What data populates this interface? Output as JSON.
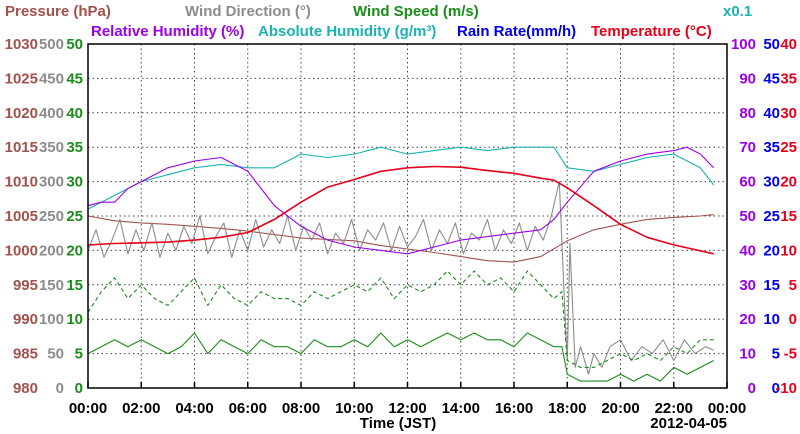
{
  "chart_data": {
    "type": "line",
    "date": "2012-04-05",
    "xlabel": "Time (JST)",
    "x_ticks": [
      "00:00",
      "02:00",
      "04:00",
      "06:00",
      "08:00",
      "10:00",
      "12:00",
      "14:00",
      "16:00",
      "18:00",
      "20:00",
      "22:00",
      "00:00"
    ],
    "x_range_hours": [
      0,
      24
    ],
    "grid": true,
    "legend": [
      {
        "key": "pressure",
        "text": "Pressure (hPa)",
        "color": "#a0524d"
      },
      {
        "key": "wind_dir",
        "text": "Wind Direction (°)",
        "color": "#8c8c8c"
      },
      {
        "key": "wind_speed",
        "text": "Wind Speed (m/s)",
        "color": "#1a8c1a"
      },
      {
        "key": "rel_hum",
        "text": "Relative Humidity (%)",
        "color": "#9b00e6"
      },
      {
        "key": "abs_hum",
        "text": "Absolute Humidity (g/m³)",
        "color": "#1ab3b3"
      },
      {
        "key": "abs_hum_scale",
        "text": "x0.1",
        "color": "#1ab3b3"
      },
      {
        "key": "rain",
        "text": "Rain Rate(mm/h)",
        "color": "#0000e6"
      },
      {
        "key": "temp",
        "text": "Temperature (°C)",
        "color": "#e6001a"
      }
    ],
    "axes": {
      "pressure": {
        "range": [
          980,
          1030
        ],
        "ticks": [
          "980",
          "985",
          "990",
          "995",
          "1000",
          "1005",
          "1010",
          "1015",
          "1020",
          "1025",
          "1030"
        ],
        "color": "#a0524d"
      },
      "wind_dir": {
        "range": [
          0,
          500
        ],
        "ticks": [
          "0",
          "50",
          "100",
          "150",
          "200",
          "250",
          "300",
          "350",
          "400",
          "450",
          "500"
        ],
        "color": "#8c8c8c"
      },
      "wind_speed": {
        "range": [
          0,
          50
        ],
        "ticks": [
          "0",
          "5",
          "10",
          "15",
          "20",
          "25",
          "30",
          "35",
          "40",
          "45",
          "50"
        ],
        "color": "#1a8c1a"
      },
      "rel_hum": {
        "range": [
          0,
          100
        ],
        "ticks": [
          "0",
          "10",
          "20",
          "30",
          "40",
          "50",
          "60",
          "70",
          "80",
          "90",
          "100"
        ],
        "color": "#9b00e6"
      },
      "rain": {
        "range": [
          0,
          50
        ],
        "ticks": [
          "0",
          "5",
          "10",
          "15",
          "20",
          "25",
          "30",
          "35",
          "40",
          "45",
          "50"
        ],
        "color": "#0000e6"
      },
      "temp": {
        "range": [
          -10,
          40
        ],
        "ticks": [
          "-10",
          "-5",
          "0",
          "5",
          "10",
          "15",
          "20",
          "25",
          "30",
          "35",
          "40"
        ],
        "color": "#e6001a"
      }
    },
    "series": [
      {
        "key": "temp",
        "name": "Temperature (°C)",
        "x": [
          0,
          1,
          2,
          3,
          4,
          5,
          6,
          7,
          8,
          9,
          10,
          11,
          12,
          13,
          14,
          15,
          16,
          17,
          17.5,
          18,
          19,
          20,
          21,
          22,
          23.5
        ],
        "y": [
          10.8,
          11.0,
          11.1,
          11.2,
          11.5,
          11.9,
          12.6,
          14.5,
          17.0,
          19.2,
          20.3,
          21.5,
          22.0,
          22.2,
          22.1,
          21.6,
          21.2,
          20.5,
          20.2,
          19.1,
          16.5,
          13.8,
          11.9,
          10.8,
          9.5
        ]
      },
      {
        "key": "rel_hum",
        "name": "Relative Humidity (%)",
        "x": [
          0,
          0.5,
          1,
          1.5,
          2,
          3,
          4,
          5,
          6,
          7,
          8,
          9,
          10,
          11,
          12,
          13,
          14,
          15,
          16,
          17,
          17.5,
          18,
          19,
          20,
          21,
          22,
          22.5,
          23,
          23.5
        ],
        "y": [
          53,
          54,
          54,
          58,
          60,
          64,
          66,
          67,
          63,
          53,
          47,
          43,
          41,
          40,
          39,
          41,
          43,
          44,
          45,
          46,
          49,
          54,
          63,
          66,
          68,
          69,
          70,
          68,
          64
        ]
      },
      {
        "key": "abs_hum",
        "name": "Absolute Humidity (g/m³)",
        "x": [
          0,
          1,
          2,
          3,
          4,
          5,
          6,
          7,
          8,
          9,
          10,
          11,
          12,
          13,
          14,
          15,
          16,
          17,
          17.5,
          18,
          19,
          20,
          21,
          22,
          22.5,
          23,
          23.5
        ],
        "y": [
          52,
          56,
          60,
          62,
          64,
          65,
          64,
          64,
          68,
          67,
          68,
          70,
          68,
          69,
          70,
          69,
          70,
          70,
          70,
          64,
          63,
          65,
          67,
          68,
          66,
          64,
          59
        ]
      },
      {
        "key": "pressure",
        "name": "Pressure (hPa)",
        "x": [
          0,
          1,
          2,
          3,
          4,
          5,
          6,
          7,
          8,
          9,
          10,
          11,
          12,
          13,
          14,
          15,
          16,
          17,
          18,
          19,
          20,
          21,
          22,
          23,
          23.5
        ],
        "y": [
          1005,
          1004.3,
          1004,
          1003.8,
          1003.5,
          1003.2,
          1002.8,
          1002.3,
          1001.8,
          1001.6,
          1001.4,
          1000.7,
          1000.2,
          999.7,
          999.1,
          998.5,
          998.3,
          999.1,
          1001.4,
          1003.0,
          1003.8,
          1004.5,
          1004.8,
          1005,
          1005.2
        ]
      },
      {
        "key": "wind_dir",
        "name": "Wind Direction (°)",
        "x": [
          0,
          0.3,
          0.6,
          0.9,
          1.2,
          1.5,
          1.8,
          2.1,
          2.4,
          2.7,
          3,
          3.3,
          3.6,
          3.9,
          4.2,
          4.5,
          4.8,
          5.1,
          5.4,
          5.7,
          6,
          6.3,
          6.6,
          6.9,
          7.2,
          7.5,
          7.8,
          8.1,
          8.4,
          8.7,
          9,
          9.3,
          9.6,
          9.9,
          10.2,
          10.5,
          10.8,
          11.1,
          11.4,
          11.7,
          12,
          12.3,
          12.6,
          12.9,
          13.2,
          13.5,
          13.8,
          14.1,
          14.4,
          14.7,
          15,
          15.3,
          15.6,
          15.9,
          16.2,
          16.5,
          16.8,
          17.1,
          17.4,
          17.7,
          17.9,
          18.0,
          18.1,
          18.3,
          18.5,
          18.8,
          19,
          19.3,
          19.6,
          20,
          20.4,
          20.8,
          21.2,
          21.6,
          22,
          22.4,
          22.8,
          23.2,
          23.5
        ],
        "y": [
          200,
          230,
          190,
          215,
          245,
          195,
          230,
          200,
          240,
          190,
          225,
          200,
          235,
          210,
          250,
          195,
          220,
          240,
          190,
          230,
          200,
          245,
          205,
          230,
          210,
          250,
          200,
          235,
          215,
          240,
          195,
          225,
          210,
          245,
          200,
          230,
          215,
          240,
          200,
          235,
          205,
          220,
          245,
          200,
          230,
          210,
          240,
          195,
          225,
          215,
          245,
          200,
          230,
          210,
          240,
          200,
          235,
          215,
          250,
          300,
          120,
          40,
          210,
          30,
          60,
          20,
          50,
          30,
          60,
          70,
          40,
          60,
          50,
          70,
          40,
          70,
          50,
          60,
          55
        ]
      },
      {
        "key": "wind_speed",
        "name": "Wind Speed (m/s) — mean",
        "x": [
          0,
          0.5,
          1,
          1.5,
          2,
          2.5,
          3,
          3.5,
          4,
          4.5,
          5,
          5.5,
          6,
          6.5,
          7,
          7.5,
          8,
          8.5,
          9,
          9.5,
          10,
          10.5,
          11,
          11.5,
          12,
          12.5,
          13,
          13.5,
          14,
          14.5,
          15,
          15.5,
          16,
          16.5,
          17,
          17.5,
          17.8,
          18,
          18.5,
          19,
          19.5,
          20,
          20.5,
          21,
          21.5,
          22,
          22.5,
          23,
          23.5
        ],
        "y": [
          5,
          6,
          7,
          6,
          7,
          6,
          5,
          6,
          8,
          5,
          7,
          6,
          5,
          7,
          6,
          6,
          5,
          7,
          6,
          6,
          7,
          6,
          8,
          6,
          7,
          6,
          7,
          8,
          7,
          8,
          7,
          7,
          6,
          8,
          7,
          6,
          6,
          2,
          1,
          1,
          1,
          2,
          1,
          2,
          1,
          3,
          2,
          3,
          4
        ]
      },
      {
        "key": "wind_speed_max",
        "name": "Wind Speed (m/s) — max",
        "x": [
          0,
          0.5,
          1,
          1.5,
          2,
          2.5,
          3,
          3.5,
          4,
          4.5,
          5,
          5.5,
          6,
          6.5,
          7,
          7.5,
          8,
          8.5,
          9,
          9.5,
          10,
          10.5,
          11,
          11.5,
          12,
          12.5,
          13,
          13.5,
          14,
          14.5,
          15,
          15.5,
          16,
          16.5,
          17,
          17.5,
          17.8,
          18,
          18.5,
          19,
          19.5,
          20,
          20.5,
          21,
          21.5,
          22,
          22.5,
          23,
          23.5
        ],
        "y": [
          11,
          14,
          16,
          13,
          15,
          13,
          12,
          14,
          16,
          12,
          15,
          13,
          12,
          14,
          13,
          13,
          12,
          14,
          13,
          14,
          15,
          14,
          16,
          13,
          15,
          14,
          15,
          17,
          15,
          17,
          15,
          16,
          14,
          17,
          15,
          13,
          14,
          4,
          3,
          3,
          4,
          5,
          4,
          5,
          4,
          6,
          5,
          7,
          7
        ]
      },
      {
        "key": "rain",
        "name": "Rain Rate(mm/h)",
        "x": [
          0,
          24
        ],
        "y": [
          0,
          0
        ]
      }
    ]
  }
}
